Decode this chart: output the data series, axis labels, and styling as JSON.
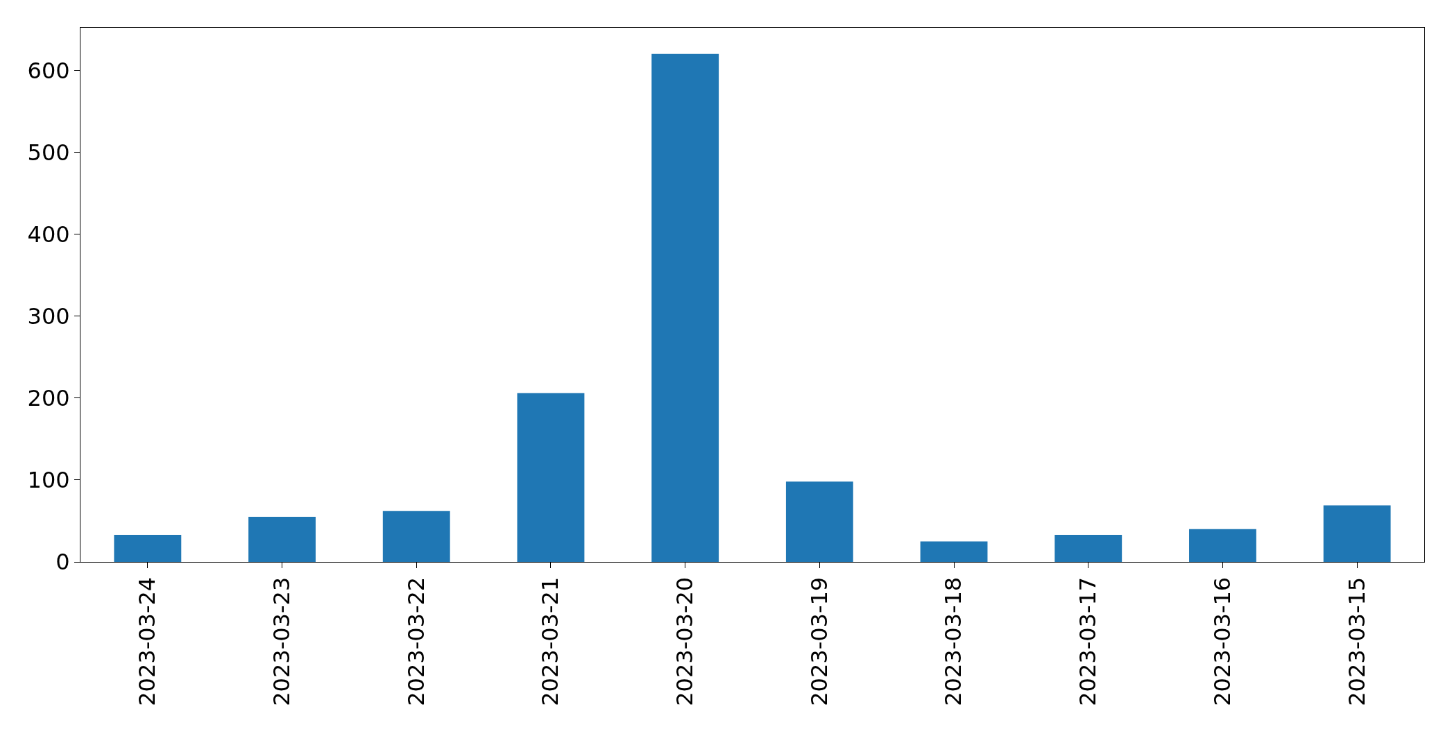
{
  "chart_data": {
    "type": "bar",
    "categories": [
      "2023-03-24",
      "2023-03-23",
      "2023-03-22",
      "2023-03-21",
      "2023-03-20",
      "2023-03-19",
      "2023-03-18",
      "2023-03-17",
      "2023-03-16",
      "2023-03-15"
    ],
    "values": [
      33,
      55,
      62,
      206,
      620,
      98,
      25,
      33,
      40,
      69
    ],
    "color": "#1f77b4",
    "ylim": [
      0,
      652
    ],
    "yticks": [
      0,
      100,
      200,
      300,
      400,
      500,
      600
    ],
    "legend": false
  }
}
